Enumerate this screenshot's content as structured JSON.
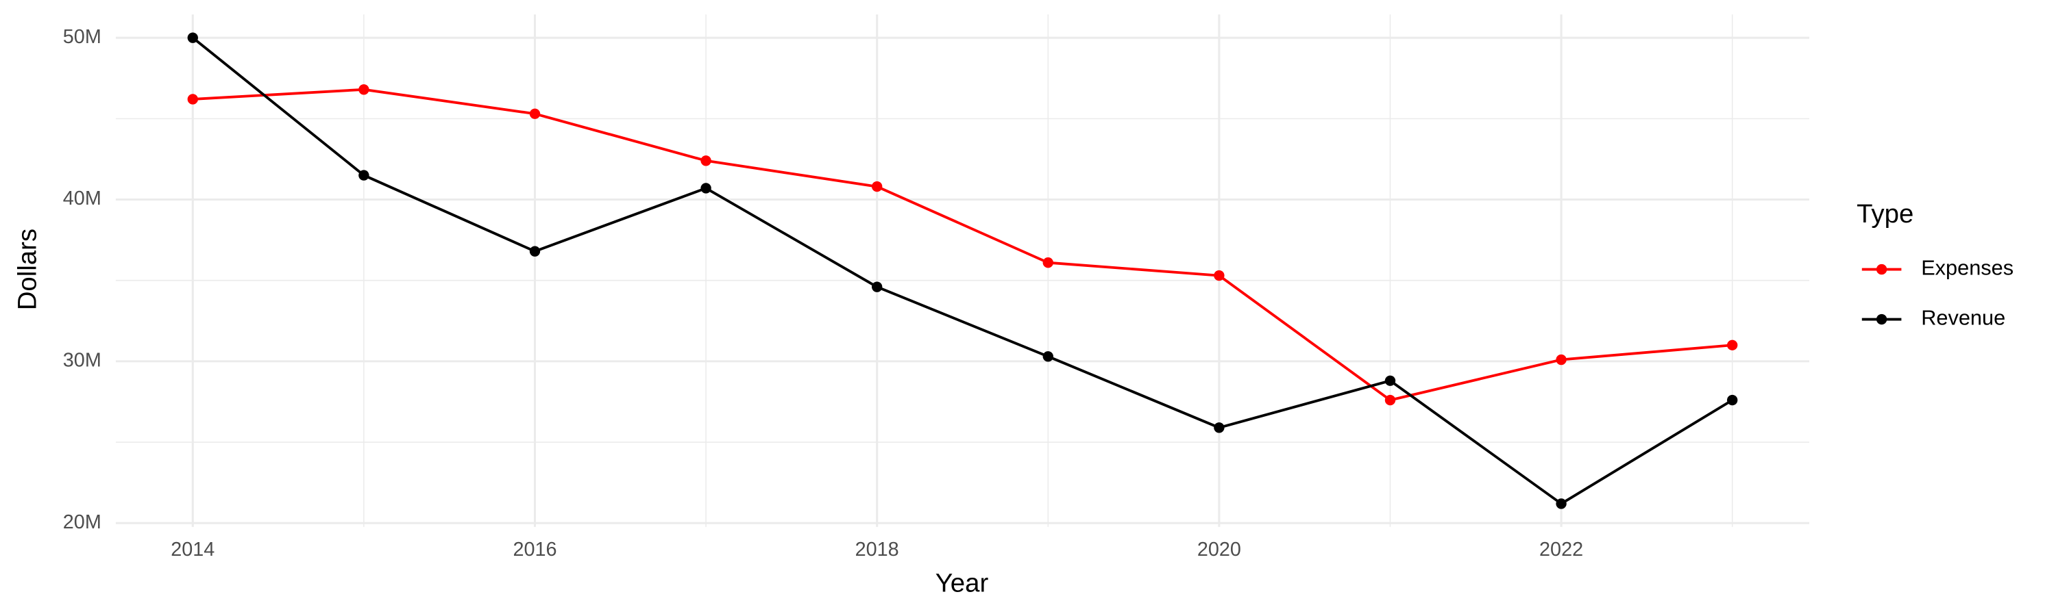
{
  "chart_data": {
    "type": "line",
    "x_label": "Year",
    "y_label": "Dollars",
    "legend_title": "Type",
    "x": [
      2014,
      2015,
      2016,
      2017,
      2018,
      2019,
      2020,
      2021,
      2022,
      2023
    ],
    "series": [
      {
        "name": "Expenses",
        "color": "#ff0000",
        "values": [
          46200000,
          46800000,
          45300000,
          42400000,
          40800000,
          36100000,
          35300000,
          27600000,
          30100000,
          31000000
        ]
      },
      {
        "name": "Revenue",
        "color": "#000000",
        "values": [
          50000000,
          41500000,
          36800000,
          40700000,
          34600000,
          30300000,
          25900000,
          28800000,
          21200000,
          27600000
        ]
      }
    ],
    "xlim": [
      2013.55,
      2023.45
    ],
    "xticks": [
      2014,
      2016,
      2018,
      2020,
      2022
    ],
    "x_minor_grid": [
      2015,
      2017,
      2019,
      2021,
      2023
    ],
    "ylim": [
      19760000,
      51440000
    ],
    "yticks": [
      {
        "value": 20000000,
        "label": "20M"
      },
      {
        "value": 30000000,
        "label": "30M"
      },
      {
        "value": 40000000,
        "label": "40M"
      },
      {
        "value": 50000000,
        "label": "50M"
      }
    ],
    "y_minor_grid": [
      25000000,
      35000000,
      45000000
    ],
    "grid": true,
    "legend": "right"
  }
}
